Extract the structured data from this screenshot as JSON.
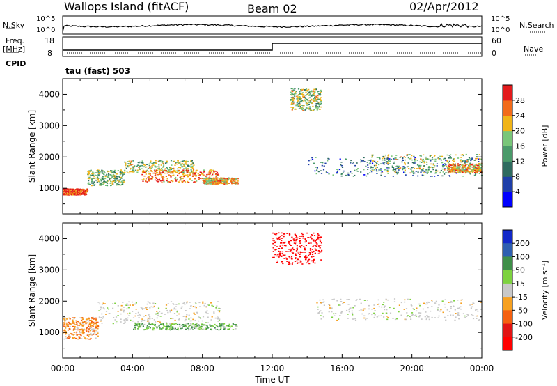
{
  "header": {
    "title": "Wallops Island (fitACF)",
    "beam": "Beam 02",
    "date": "02/Apr/2012"
  },
  "aux_panels": {
    "nsky_label": "N.Sky",
    "nsky_ticks": [
      "10^5",
      "10^0"
    ],
    "nsearch_label": "N.Search",
    "nsearch_ticks": [
      "10^5",
      "10^0"
    ],
    "freq_label_top": "Freq.",
    "freq_label_unit": "[MHz]",
    "freq_ticks": [
      "18",
      "8"
    ],
    "nave_label": "Nave",
    "nave_ticks": [
      "60",
      "0"
    ],
    "cpid_label": "CPID",
    "cpid_value": "tau (fast) 503"
  },
  "chart_data": [
    {
      "type": "heatmap",
      "panel": "power",
      "ylabel": "Slant Range [km]",
      "xlabel": "",
      "yticks": [
        "1000",
        "2000",
        "3000",
        "4000"
      ],
      "ylim": [
        180,
        4500
      ],
      "xlim": [
        0,
        24
      ],
      "colorbar_label": "Power [dB]",
      "colorbar_ticks": [
        "4",
        "8",
        "12",
        "16",
        "20",
        "24",
        "28"
      ],
      "colorbar_range": [
        0,
        30
      ],
      "colors": [
        "#0000ff",
        "#1f3fa8",
        "#2e6b5f",
        "#4a9a6a",
        "#79c679",
        "#f0b418",
        "#f26b1a",
        "#e31a1c"
      ],
      "echo_bands": [
        {
          "t0": 0.0,
          "t1": 1.4,
          "r0": 800,
          "r1": 1000,
          "level": 28
        },
        {
          "t0": 1.4,
          "t1": 3.5,
          "r0": 1100,
          "r1": 1600,
          "level": 16
        },
        {
          "t0": 3.5,
          "t1": 7.5,
          "r0": 1500,
          "r1": 1900,
          "level": 18
        },
        {
          "t0": 4.5,
          "t1": 9.0,
          "r0": 1200,
          "r1": 1600,
          "level": 26
        },
        {
          "t0": 8.0,
          "t1": 10.0,
          "r0": 1150,
          "r1": 1350,
          "level": 22
        },
        {
          "t0": 13.0,
          "t1": 14.8,
          "r0": 3500,
          "r1": 4200,
          "level": 18
        },
        {
          "t0": 14.0,
          "t1": 24.0,
          "r0": 1400,
          "r1": 2000,
          "level": 10
        },
        {
          "t0": 17.5,
          "t1": 24.0,
          "r0": 1500,
          "r1": 2100,
          "level": 18
        },
        {
          "t0": 22.0,
          "t1": 24.0,
          "r0": 1500,
          "r1": 1800,
          "level": 24
        }
      ]
    },
    {
      "type": "heatmap",
      "panel": "velocity",
      "ylabel": "Slant Range [km]",
      "xlabel": "Time UT",
      "xticks": [
        "00:00",
        "04:00",
        "08:00",
        "12:00",
        "16:00",
        "20:00",
        "00:00"
      ],
      "yticks": [
        "1000",
        "2000",
        "3000",
        "4000"
      ],
      "ylim": [
        180,
        4500
      ],
      "xlim": [
        0,
        24
      ],
      "colorbar_label": "Velocity [m s⁻¹]",
      "colorbar_ticks": [
        "200",
        "100",
        "50",
        "15",
        "-15",
        "-50",
        "-100",
        "-200"
      ],
      "colors": [
        "#1228c8",
        "#2e5fb0",
        "#3f8f49",
        "#7dd23f",
        "#c8c8c8",
        "#f6a020",
        "#f56010",
        "#e11414",
        "#ff0000"
      ],
      "echo_bands": [
        {
          "t0": 0.0,
          "t1": 2.0,
          "r0": 800,
          "r1": 1500,
          "velocity": -30
        },
        {
          "t0": 2.0,
          "t1": 9.0,
          "r0": 1300,
          "r1": 2000,
          "velocity": 0
        },
        {
          "t0": 4.0,
          "t1": 10.0,
          "r0": 1100,
          "r1": 1300,
          "velocity": 30
        },
        {
          "t0": 12.0,
          "t1": 14.8,
          "r0": 3200,
          "r1": 4200,
          "velocity": -250
        },
        {
          "t0": 14.5,
          "t1": 24.0,
          "r0": 1400,
          "r1": 2100,
          "velocity": 0
        }
      ]
    }
  ]
}
